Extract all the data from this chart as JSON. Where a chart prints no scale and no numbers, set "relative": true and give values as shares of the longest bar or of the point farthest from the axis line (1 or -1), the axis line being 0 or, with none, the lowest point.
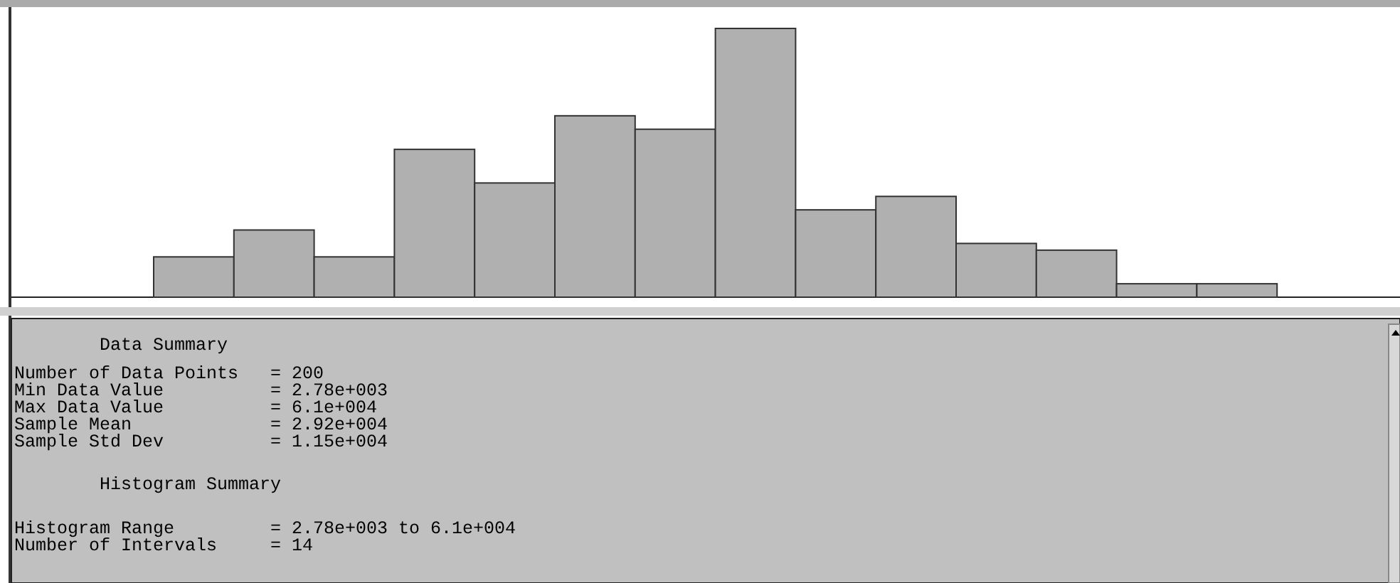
{
  "chart_data": {
    "type": "bar",
    "relative": true,
    "color": "#b0b0b0",
    "categories": [
      null,
      null,
      null,
      null,
      null,
      null,
      null,
      null,
      null,
      null,
      null,
      null,
      null,
      null
    ],
    "values": [
      0.15,
      0.25,
      0.15,
      0.55,
      0.425,
      0.675,
      0.625,
      1,
      0.325,
      0.375,
      0.2,
      0.175,
      0.05,
      0.05
    ],
    "annotations": [
      "        Data Summary",
      "Number of Data Points   = 200",
      "Min Data Value          = 2.78e+003",
      "Max Data Value          = 6.1e+004",
      "Sample Mean             = 2.92e+004",
      "Sample Std Dev          = 1.15e+004",
      "        Histogram Summary",
      "Histogram Range         = 2.78e+003 to 6.1e+004",
      "Number of Intervals     = 14"
    ]
  }
}
